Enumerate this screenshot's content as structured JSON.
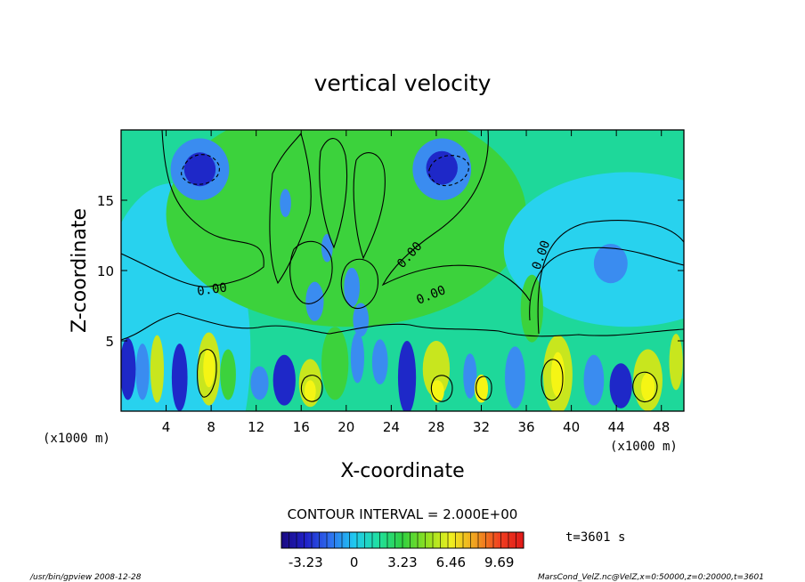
{
  "chart_data": {
    "type": "heatmap",
    "title": "vertical velocity",
    "xlabel": "X-coordinate",
    "ylabel": "Z-coordinate",
    "x_unit_label": "(x1000 m)",
    "x_unit_label_right": "(x1000 m)",
    "xlim": [
      0,
      50
    ],
    "ylim": [
      0,
      20
    ],
    "x_ticks": [
      "4",
      "8",
      "12",
      "16",
      "20",
      "24",
      "28",
      "32",
      "36",
      "40",
      "44",
      "48"
    ],
    "x_tick_values": [
      4,
      8,
      12,
      16,
      20,
      24,
      28,
      32,
      36,
      40,
      44,
      48
    ],
    "y_ticks": [
      "5",
      "10",
      "15"
    ],
    "y_tick_values": [
      5,
      10,
      15
    ],
    "contour_labels": [
      "0.00",
      "0.00",
      "0.00",
      "0.00"
    ],
    "contour_interval_text": "CONTOUR INTERVAL = 2.000E+00",
    "time_text": "t=3601 s",
    "colorbar": {
      "tick_labels": [
        "-3.23",
        "0",
        "3.23",
        "6.46",
        "9.69"
      ],
      "tick_values": [
        -3.23,
        0,
        3.23,
        6.46,
        9.69
      ],
      "range": [
        -4.85,
        11.31
      ],
      "colors": [
        "#1a0a80",
        "#2020c8",
        "#2e6ef0",
        "#20c8f0",
        "#20e0a0",
        "#30d040",
        "#90e020",
        "#f0f020",
        "#f0a020",
        "#f04020",
        "#e01818"
      ]
    },
    "colors": {
      "negative_strong": "#1e28c8",
      "negative": "#3a8cf0",
      "weak_negative": "#28d2ee",
      "background": "#1ed89a",
      "weak_positive": "#3cd23c",
      "positive": "#c8e61e",
      "positive_strong": "#f5f514"
    }
  },
  "footer": {
    "left": "/usr/bin/gpview   2008-12-28",
    "right": "MarsCond_VelZ.nc@VelZ,x=0:50000,z=0:20000,t=3601"
  }
}
